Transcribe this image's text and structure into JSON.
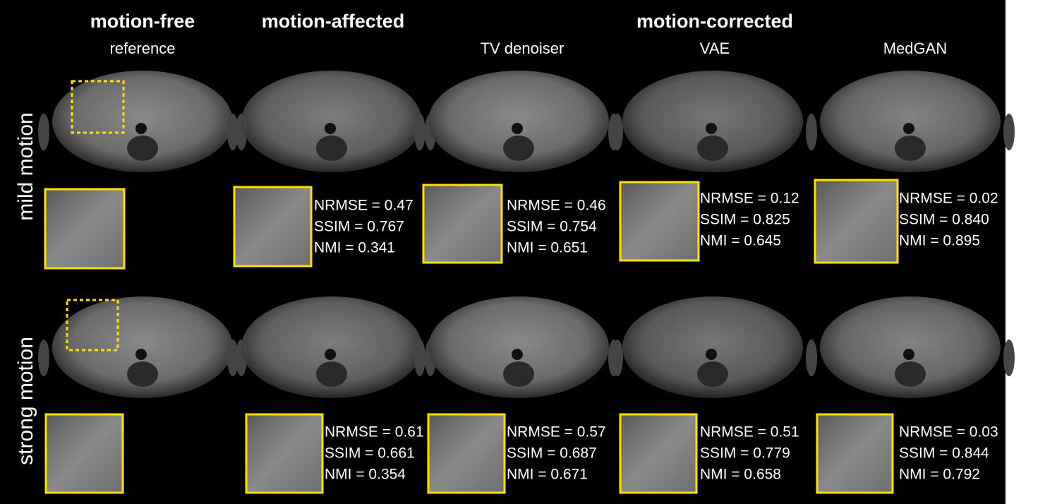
{
  "headers": {
    "groups": [
      "motion-free",
      "motion-affected",
      "motion-corrected"
    ],
    "columns": [
      "reference",
      "TV denoiser",
      "VAE",
      "MedGAN"
    ]
  },
  "rows": [
    {
      "label": "mild motion",
      "metrics": [
        [
          "NRMSE = 0.47",
          "SSIM = 0.767",
          "NMI = 0.341"
        ],
        [
          "NRMSE = 0.46",
          "SSIM = 0.754",
          "NMI = 0.651"
        ],
        [
          "NRMSE = 0.12",
          "SSIM = 0.825",
          "NMI = 0.645"
        ],
        [
          "NRMSE = 0.02",
          "SSIM = 0.840",
          "NMI = 0.895"
        ]
      ]
    },
    {
      "label": "strong motion",
      "metrics": [
        [
          "NRMSE = 0.61",
          "SSIM = 0.661",
          "NMI = 0.354"
        ],
        [
          "NRMSE = 0.57",
          "SSIM = 0.687",
          "NMI = 0.671"
        ],
        [
          "NRMSE = 0.51",
          "SSIM = 0.779",
          "NMI = 0.658"
        ],
        [
          "NRMSE = 0.03",
          "SSIM = 0.844",
          "NMI = 0.792"
        ]
      ]
    }
  ]
}
